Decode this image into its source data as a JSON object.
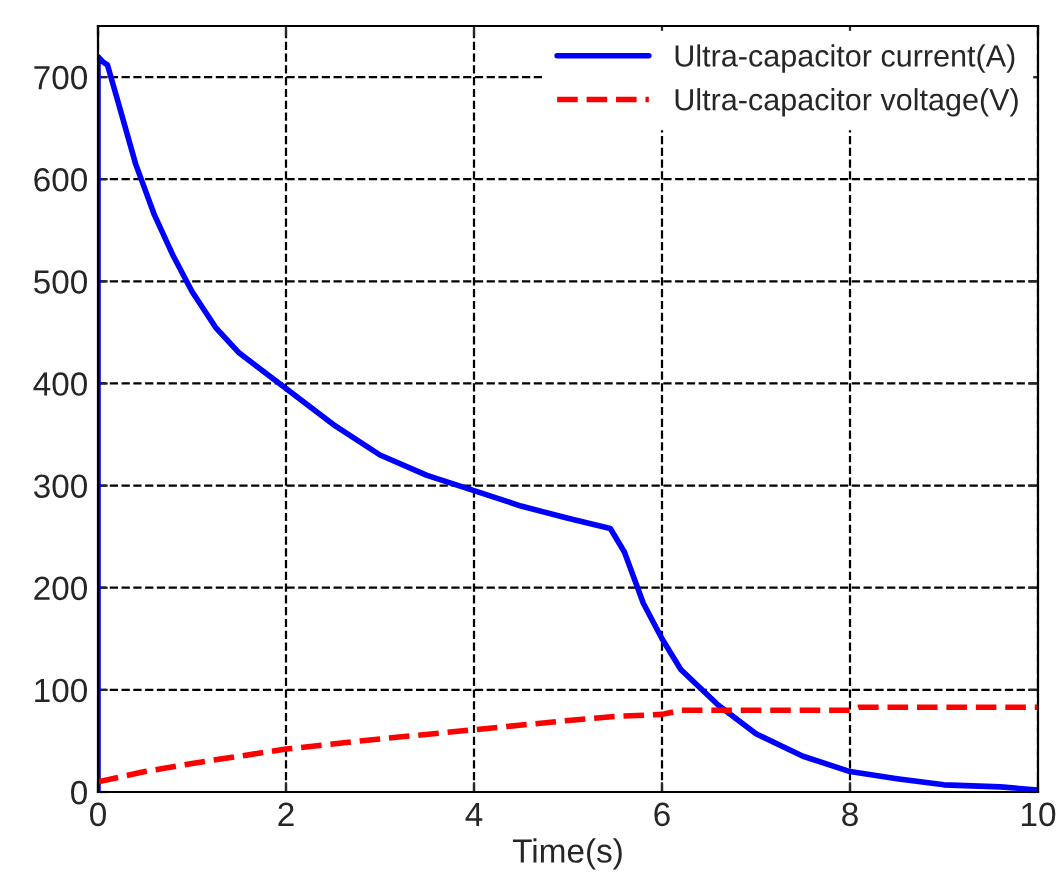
{
  "chart_data": {
    "type": "line",
    "xlabel": "Time(s)",
    "xlim": [
      0,
      10
    ],
    "xticks": [
      0,
      2,
      4,
      6,
      8,
      10
    ],
    "ylim": [
      0,
      750
    ],
    "yticks": [
      0,
      100,
      200,
      300,
      400,
      500,
      600,
      700
    ],
    "grid": true,
    "legend": "top right",
    "marker": "none",
    "series": [
      {
        "name": "Ultra-capacitor current(A)",
        "color": "#0000ff",
        "line_style": "solid",
        "x": [
          0,
          0,
          0.05,
          0.1,
          0.2,
          0.4,
          0.6,
          0.8,
          1.0,
          1.25,
          1.5,
          2,
          2.5,
          3,
          3.5,
          4,
          4.5,
          5,
          5.45,
          5.6,
          5.8,
          6,
          6.2,
          6.6,
          7,
          7.5,
          8,
          8.5,
          9,
          9.6,
          10
        ],
        "values": [
          0,
          720,
          715,
          712,
          680,
          615,
          565,
          525,
          490,
          455,
          430,
          395,
          360,
          330,
          310,
          295,
          280,
          268,
          258,
          235,
          185,
          150,
          120,
          85,
          57,
          35,
          20,
          13,
          7,
          5,
          2
        ]
      },
      {
        "name": "Ultra-capacitor voltage(V)",
        "color": "#ff0000",
        "line_style": "dashed",
        "x": [
          0,
          0.5,
          1,
          2,
          3,
          4,
          5,
          5.5,
          6,
          6.2,
          8,
          8.1,
          10
        ],
        "values": [
          10,
          20,
          28,
          42,
          52,
          61,
          70,
          74,
          76,
          80,
          80,
          83,
          83
        ]
      }
    ]
  }
}
